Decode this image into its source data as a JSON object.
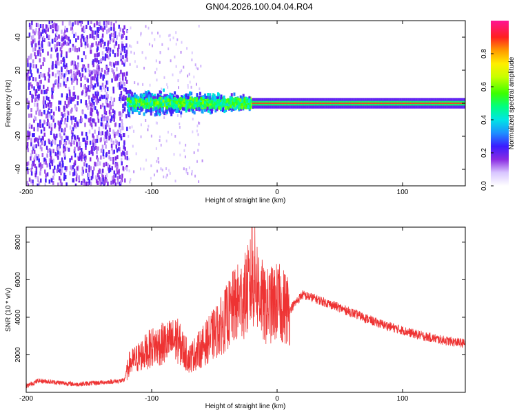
{
  "title": "GN04.2026.100.04.04.R04",
  "chart_data": [
    {
      "type": "heatmap",
      "name": "spectrogram",
      "xlabel": "Height of straight line (km)",
      "ylabel": "Frequency (Hz)",
      "xlim": [
        -200,
        150
      ],
      "ylim": [
        -50,
        50
      ],
      "xticks": [
        -200,
        -100,
        0,
        100
      ],
      "yticks": [
        -40,
        -20,
        0,
        20,
        40
      ],
      "colorbar": {
        "label": "Normalized spectral amplitude",
        "range": [
          0,
          1
        ],
        "ticks": [
          0.0,
          0.2,
          0.4,
          0.6,
          0.8
        ]
      },
      "regions": [
        {
          "x": [
            -200,
            -120
          ],
          "freq_spread": 50,
          "amplitude": 0.12,
          "description_level": "noise"
        },
        {
          "x": [
            -120,
            -20
          ],
          "freq_spread": 10,
          "amplitude": 0.35
        },
        {
          "x": [
            -20,
            150
          ],
          "freq_spread": 3,
          "amplitude": 0.85
        }
      ]
    },
    {
      "type": "line",
      "name": "snr",
      "xlabel": "Height of straight line (km)",
      "ylabel": "SNR (10 * v/v)",
      "xlim": [
        -200,
        150
      ],
      "ylim": [
        0,
        8800
      ],
      "xticks": [
        -200,
        -100,
        0,
        100
      ],
      "yticks": [
        2000,
        4000,
        6000,
        8000
      ],
      "color": "#ee3333",
      "envelope": {
        "x": [
          -200,
          -190,
          -160,
          -140,
          -122,
          -118,
          -100,
          -80,
          -70,
          -60,
          -45,
          -35,
          -25,
          -18,
          -10,
          0,
          10,
          20,
          30,
          50,
          80,
          110,
          130,
          150
        ],
        "y": [
          200,
          500,
          300,
          400,
          500,
          1500,
          2400,
          2800,
          1800,
          2400,
          3500,
          4500,
          5200,
          6200,
          4500,
          4800,
          4400,
          5200,
          5000,
          4500,
          3700,
          3100,
          2800,
          2600
        ]
      }
    }
  ]
}
